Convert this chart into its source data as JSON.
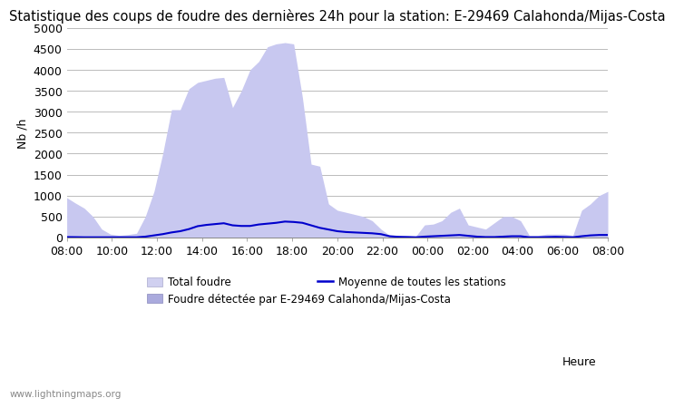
{
  "title": "Statistique des coups de foudre des dernières 24h pour la station: E-29469 Calahonda/Mijas-Costa",
  "ylabel": "Nb /h",
  "xlabel": "Heure",
  "watermark": "www.lightningmaps.org",
  "x_labels": [
    "08:00",
    "10:00",
    "12:00",
    "14:00",
    "16:00",
    "18:00",
    "20:00",
    "22:00",
    "00:00",
    "02:00",
    "04:00",
    "06:00",
    "08:00"
  ],
  "ylim": [
    0,
    5000
  ],
  "yticks": [
    0,
    500,
    1000,
    1500,
    2000,
    2500,
    3000,
    3500,
    4000,
    4500,
    5000
  ],
  "area_color": "#c8c8f0",
  "line_color": "#0000cc",
  "background_color": "#ffffff",
  "grid_color": "#bbbbbb",
  "title_fontsize": 10.5,
  "legend_label_total": "Total foudre",
  "legend_label_detected": "Foudre détectée par E-29469 Calahonda/Mijas-Costa",
  "legend_label_mean": "Moyenne de toutes les stations",
  "total_foudre": [
    950,
    820,
    700,
    500,
    200,
    80,
    50,
    70,
    100,
    500,
    1100,
    2000,
    3050,
    3050,
    3550,
    3700,
    3750,
    3800,
    3820,
    3100,
    3500,
    4000,
    4200,
    4550,
    4620,
    4650,
    4620,
    3350,
    1750,
    1700,
    800,
    650,
    600,
    550,
    500,
    400,
    200,
    50,
    50,
    50,
    30,
    300,
    320,
    400,
    600,
    700,
    300,
    250,
    200,
    350,
    500,
    500,
    400,
    50,
    50,
    80,
    80,
    80,
    50,
    650,
    800,
    1000,
    1100
  ],
  "mean_line": [
    10,
    8,
    5,
    5,
    5,
    5,
    5,
    5,
    5,
    20,
    50,
    80,
    120,
    150,
    200,
    270,
    300,
    320,
    340,
    290,
    275,
    275,
    310,
    330,
    350,
    380,
    370,
    350,
    290,
    230,
    190,
    150,
    130,
    120,
    110,
    100,
    80,
    30,
    15,
    10,
    5,
    20,
    30,
    40,
    50,
    60,
    40,
    20,
    10,
    10,
    20,
    30,
    30,
    5,
    5,
    10,
    15,
    10,
    5,
    30,
    50,
    60,
    60
  ]
}
